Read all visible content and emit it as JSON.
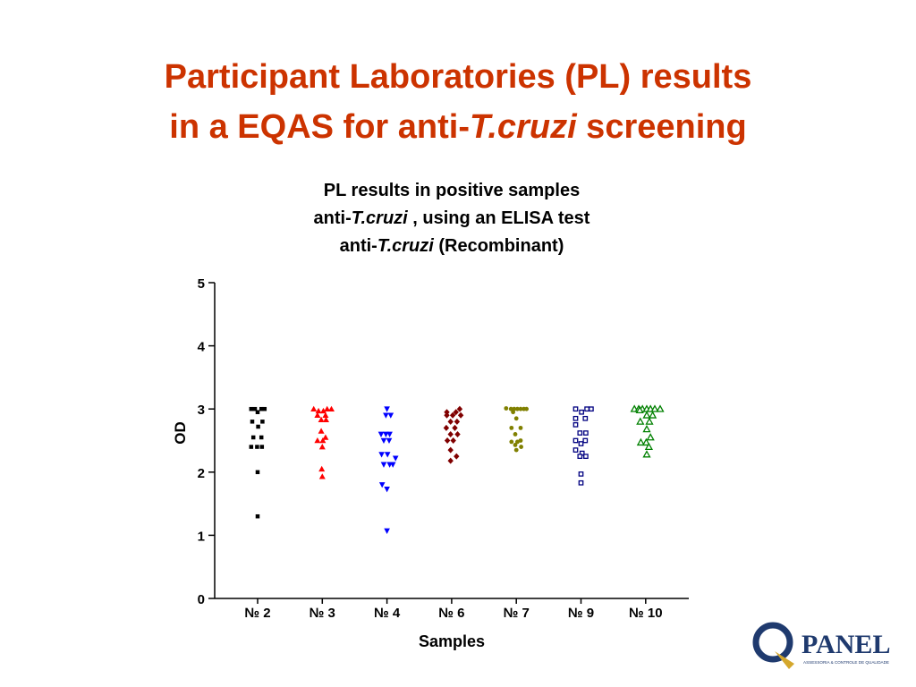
{
  "slide": {
    "title_line1": "Participant Laboratories (PL) results",
    "title_line2_prefix": "in a EQAS for anti-",
    "title_line2_italic": "T.cruzi",
    "title_line2_suffix": " screening"
  },
  "chart_data": {
    "type": "scatter",
    "title_line1": "PL results in positive samples",
    "title_line2_prefix": "anti-",
    "title_line2_italic": "T.cruzi",
    "title_line2_suffix": " , using an ELISA test",
    "title_line3_prefix": "anti-",
    "title_line3_italic": "T.cruzi",
    "title_line3_suffix": " (Recombinant)",
    "xlabel": "Samples",
    "ylabel": "OD",
    "ylim": [
      0,
      5
    ],
    "yticks": [
      "0",
      "1",
      "2",
      "3",
      "4",
      "5"
    ],
    "grid": false,
    "categories": [
      "№ 2",
      "№ 3",
      "№ 4",
      "№ 6",
      "№ 7",
      "№ 9",
      "№ 10"
    ],
    "series": [
      {
        "category": "№ 2",
        "marker": "square-filled",
        "color": "#000000",
        "points": [
          {
            "offset": -0.6,
            "y": 3.0
          },
          {
            "offset": -0.25,
            "y": 3.0
          },
          {
            "offset": 0.35,
            "y": 3.0
          },
          {
            "offset": 0.65,
            "y": 3.0
          },
          {
            "offset": 0.0,
            "y": 2.95
          },
          {
            "offset": -0.5,
            "y": 2.8
          },
          {
            "offset": 0.45,
            "y": 2.8
          },
          {
            "offset": 0.05,
            "y": 2.72
          },
          {
            "offset": -0.4,
            "y": 2.55
          },
          {
            "offset": 0.35,
            "y": 2.55
          },
          {
            "offset": -0.6,
            "y": 2.4
          },
          {
            "offset": -0.05,
            "y": 2.4
          },
          {
            "offset": 0.4,
            "y": 2.4
          },
          {
            "offset": 0.0,
            "y": 2.0
          },
          {
            "offset": 0.0,
            "y": 1.3
          }
        ]
      },
      {
        "category": "№ 3",
        "marker": "triangle-up-filled",
        "color": "#ff0000",
        "points": [
          {
            "offset": -0.8,
            "y": 3.0
          },
          {
            "offset": 0.45,
            "y": 3.0
          },
          {
            "offset": 0.85,
            "y": 3.0
          },
          {
            "offset": -0.35,
            "y": 2.97
          },
          {
            "offset": 0.1,
            "y": 2.97
          },
          {
            "offset": -0.45,
            "y": 2.9
          },
          {
            "offset": 0.3,
            "y": 2.9
          },
          {
            "offset": -0.1,
            "y": 2.83
          },
          {
            "offset": 0.35,
            "y": 2.83
          },
          {
            "offset": -0.1,
            "y": 2.65
          },
          {
            "offset": 0.3,
            "y": 2.55
          },
          {
            "offset": -0.45,
            "y": 2.5
          },
          {
            "offset": 0.05,
            "y": 2.5
          },
          {
            "offset": 0.0,
            "y": 2.4
          },
          {
            "offset": -0.05,
            "y": 2.05
          },
          {
            "offset": 0.0,
            "y": 1.93
          }
        ]
      },
      {
        "category": "№ 4",
        "marker": "triangle-down-filled",
        "color": "#0000ff",
        "points": [
          {
            "offset": 0.0,
            "y": 3.0
          },
          {
            "offset": -0.1,
            "y": 2.9
          },
          {
            "offset": 0.35,
            "y": 2.9
          },
          {
            "offset": -0.55,
            "y": 2.6
          },
          {
            "offset": -0.1,
            "y": 2.6
          },
          {
            "offset": 0.25,
            "y": 2.6
          },
          {
            "offset": -0.3,
            "y": 2.5
          },
          {
            "offset": 0.2,
            "y": 2.5
          },
          {
            "offset": -0.5,
            "y": 2.28
          },
          {
            "offset": 0.05,
            "y": 2.28
          },
          {
            "offset": 0.8,
            "y": 2.22
          },
          {
            "offset": -0.3,
            "y": 2.12
          },
          {
            "offset": 0.25,
            "y": 2.12
          },
          {
            "offset": 0.55,
            "y": 2.12
          },
          {
            "offset": -0.45,
            "y": 1.8
          },
          {
            "offset": 0.0,
            "y": 1.73
          },
          {
            "offset": 0.0,
            "y": 1.07
          }
        ]
      },
      {
        "category": "№ 6",
        "marker": "diamond-filled",
        "color": "#800000",
        "points": [
          {
            "offset": 0.75,
            "y": 3.0
          },
          {
            "offset": -0.45,
            "y": 2.95
          },
          {
            "offset": 0.4,
            "y": 2.95
          },
          {
            "offset": -0.45,
            "y": 2.9
          },
          {
            "offset": 0.1,
            "y": 2.9
          },
          {
            "offset": 0.85,
            "y": 2.9
          },
          {
            "offset": -0.1,
            "y": 2.8
          },
          {
            "offset": 0.5,
            "y": 2.8
          },
          {
            "offset": -0.5,
            "y": 2.7
          },
          {
            "offset": 0.3,
            "y": 2.7
          },
          {
            "offset": -0.1,
            "y": 2.6
          },
          {
            "offset": 0.55,
            "y": 2.6
          },
          {
            "offset": -0.4,
            "y": 2.5
          },
          {
            "offset": 0.15,
            "y": 2.5
          },
          {
            "offset": -0.1,
            "y": 2.35
          },
          {
            "offset": 0.45,
            "y": 2.25
          },
          {
            "offset": -0.1,
            "y": 2.18
          }
        ]
      },
      {
        "category": "№ 7",
        "marker": "circle-filled",
        "color": "#808000",
        "points": [
          {
            "offset": -0.95,
            "y": 3.01
          },
          {
            "offset": -0.5,
            "y": 3.0
          },
          {
            "offset": -0.2,
            "y": 3.0
          },
          {
            "offset": 0.1,
            "y": 3.0
          },
          {
            "offset": 0.4,
            "y": 3.0
          },
          {
            "offset": 0.7,
            "y": 3.0
          },
          {
            "offset": 0.95,
            "y": 3.0
          },
          {
            "offset": -0.3,
            "y": 2.95
          },
          {
            "offset": 0.0,
            "y": 2.85
          },
          {
            "offset": -0.45,
            "y": 2.7
          },
          {
            "offset": 0.4,
            "y": 2.7
          },
          {
            "offset": -0.1,
            "y": 2.6
          },
          {
            "offset": 0.4,
            "y": 2.5
          },
          {
            "offset": -0.45,
            "y": 2.48
          },
          {
            "offset": 0.1,
            "y": 2.48
          },
          {
            "offset": -0.1,
            "y": 2.43
          },
          {
            "offset": 0.45,
            "y": 2.4
          },
          {
            "offset": 0.0,
            "y": 2.35
          }
        ]
      },
      {
        "category": "№ 9",
        "marker": "square-open",
        "color": "#000080",
        "points": [
          {
            "offset": -0.5,
            "y": 3.0
          },
          {
            "offset": 0.55,
            "y": 3.0
          },
          {
            "offset": 0.95,
            "y": 3.0
          },
          {
            "offset": 0.05,
            "y": 2.95
          },
          {
            "offset": -0.5,
            "y": 2.85
          },
          {
            "offset": 0.4,
            "y": 2.85
          },
          {
            "offset": -0.5,
            "y": 2.75
          },
          {
            "offset": -0.1,
            "y": 2.62
          },
          {
            "offset": 0.45,
            "y": 2.62
          },
          {
            "offset": -0.5,
            "y": 2.5
          },
          {
            "offset": 0.4,
            "y": 2.5
          },
          {
            "offset": 0.0,
            "y": 2.45
          },
          {
            "offset": -0.5,
            "y": 2.35
          },
          {
            "offset": 0.1,
            "y": 2.3
          },
          {
            "offset": -0.1,
            "y": 2.25
          },
          {
            "offset": 0.45,
            "y": 2.25
          },
          {
            "offset": 0.0,
            "y": 1.97
          },
          {
            "offset": 0.0,
            "y": 1.83
          }
        ]
      },
      {
        "category": "№ 10",
        "marker": "triangle-up-open",
        "color": "#008000",
        "points": [
          {
            "offset": -1.05,
            "y": 3.0
          },
          {
            "offset": -0.65,
            "y": 3.0
          },
          {
            "offset": -0.3,
            "y": 3.0
          },
          {
            "offset": 0.1,
            "y": 3.0
          },
          {
            "offset": 0.45,
            "y": 3.0
          },
          {
            "offset": 0.85,
            "y": 3.0
          },
          {
            "offset": 1.35,
            "y": 3.0
          },
          {
            "offset": -0.55,
            "y": 2.98
          },
          {
            "offset": 0.1,
            "y": 2.9
          },
          {
            "offset": 0.65,
            "y": 2.9
          },
          {
            "offset": -0.5,
            "y": 2.8
          },
          {
            "offset": 0.35,
            "y": 2.8
          },
          {
            "offset": 0.1,
            "y": 2.68
          },
          {
            "offset": 0.45,
            "y": 2.55
          },
          {
            "offset": -0.45,
            "y": 2.47
          },
          {
            "offset": 0.05,
            "y": 2.47
          },
          {
            "offset": 0.3,
            "y": 2.4
          },
          {
            "offset": 0.1,
            "y": 2.28
          }
        ]
      }
    ]
  },
  "logo": {
    "letter": "Q",
    "brand": "PANEL",
    "tagline": "ASSESSORIA & CONTROLE DE QUALIDADE",
    "colors": {
      "brand_blue": "#1f3a6e",
      "brand_gold": "#d4a72c"
    }
  }
}
